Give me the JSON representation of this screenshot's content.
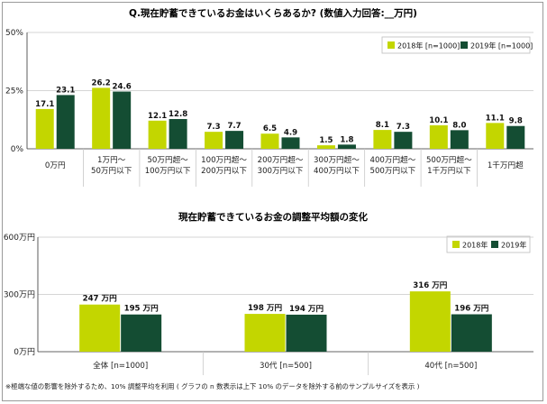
{
  "colors": {
    "series_2018": "#c3d600",
    "series_2019": "#144d33",
    "grid": "#c8c8c8",
    "axis": "#333333"
  },
  "chart_data": [
    {
      "type": "bar",
      "title": "Q.現在貯蓄できているお金はいくらあるか? (数値入力回答:__万円)",
      "ylim": [
        0,
        50
      ],
      "yticks": [
        "50%",
        "25%",
        "0%"
      ],
      "legend": "top-right",
      "categories": [
        [
          "0万円"
        ],
        [
          "1万円〜",
          "50万円以下"
        ],
        [
          "50万円超〜",
          "100万円以下"
        ],
        [
          "100万円超〜",
          "200万円以下"
        ],
        [
          "200万円超〜",
          "300万円以下"
        ],
        [
          "300万円超〜",
          "400万円以下"
        ],
        [
          "400万円超〜",
          "500万円以下"
        ],
        [
          "500万円超〜",
          "1千万円以下"
        ],
        [
          "1千万円超"
        ]
      ],
      "series": [
        {
          "name": "2018年 [n=1000]",
          "values": [
            17.1,
            26.2,
            12.1,
            7.3,
            6.5,
            1.5,
            8.1,
            10.1,
            11.1
          ]
        },
        {
          "name": "2019年 [n=1000]",
          "values": [
            23.1,
            24.6,
            12.8,
            7.7,
            4.9,
            1.8,
            7.3,
            8.0,
            9.8
          ]
        }
      ]
    },
    {
      "type": "bar",
      "title": "現在貯蓄できているお金の調整平均額の変化",
      "ylim": [
        0,
        600
      ],
      "yticks": [
        "600万円",
        "300万円",
        "0万円"
      ],
      "legend": "top-right",
      "categories": [
        "全体 [n=1000]",
        "30代 [n=500]",
        "40代 [n=500]"
      ],
      "series": [
        {
          "name": "2018年",
          "values": [
            247,
            198,
            316
          ],
          "labels": [
            "247 万円",
            "198 万円",
            "316 万円"
          ]
        },
        {
          "name": "2019年",
          "values": [
            195,
            194,
            196
          ],
          "labels": [
            "195 万円",
            "194 万円",
            "196 万円"
          ]
        }
      ]
    }
  ],
  "footnote": "※極端な値の影響を除外するため、10% 調整平均を利用 ( グラフの n 数表示は上下 10% のデータを除外する前のサンプルサイズを表示 )"
}
